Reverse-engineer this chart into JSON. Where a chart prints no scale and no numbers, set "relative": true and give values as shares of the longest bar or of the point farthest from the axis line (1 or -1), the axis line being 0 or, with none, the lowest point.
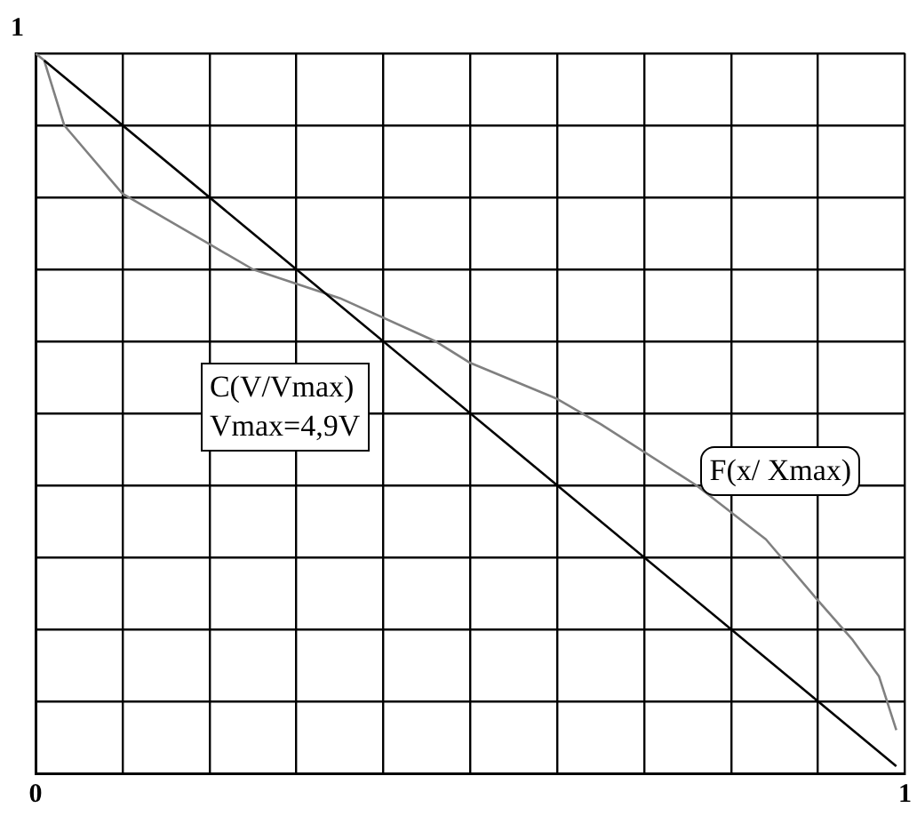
{
  "chart_data": {
    "type": "line",
    "relative": true,
    "series": [
      {
        "name": "C(V/Vmax)",
        "color": "#000000",
        "x": [
          0.01,
          0.99
        ],
        "values": [
          0.99,
          0.01
        ]
      },
      {
        "name": "F(x/ Xmax)",
        "color": "#808080",
        "x": [
          0,
          0.01,
          0.033,
          0.1,
          0.2,
          0.25,
          0.35,
          0.46,
          0.5,
          0.6,
          0.65,
          0.76,
          0.84,
          0.9,
          0.94,
          0.97,
          0.99
        ],
        "values": [
          1,
          0.99,
          0.9,
          0.805,
          0.735,
          0.7,
          0.66,
          0.6,
          0.57,
          0.52,
          0.485,
          0.4,
          0.325,
          0.24,
          0.185,
          0.135,
          0.06
        ]
      }
    ],
    "annotations": [
      {
        "text": "1",
        "x": 0,
        "y": 1
      },
      "Vmax=4,9V"
    ],
    "xlim": [
      0,
      1
    ],
    "xticks": [
      0,
      {
        "value": 0.1,
        "label": null
      },
      {
        "value": 0.2,
        "label": null
      },
      {
        "value": 0.3,
        "label": null
      },
      {
        "value": 0.4,
        "label": null
      },
      {
        "value": 0.5,
        "label": null
      },
      {
        "value": 0.6,
        "label": null
      },
      {
        "value": 0.7,
        "label": null
      },
      {
        "value": 0.8,
        "label": null
      },
      {
        "value": 0.9,
        "label": null
      },
      1
    ],
    "grid": true,
    "legend": false,
    "marker": "none",
    "line_style": "solid"
  }
}
